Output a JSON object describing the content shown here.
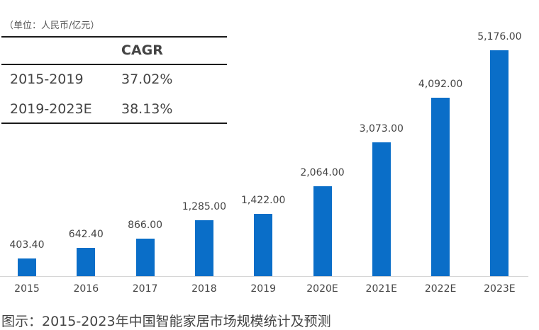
{
  "chart_data": {
    "type": "bar",
    "title": "图示：2015-2023年中国智能家居市场规模统计及预测",
    "unit_label": "（单位：人民币/亿元）",
    "xlabel": "",
    "ylabel": "",
    "categories": [
      "2015",
      "2016",
      "2017",
      "2018",
      "2019",
      "2020E",
      "2021E",
      "2022E",
      "2023E"
    ],
    "values": [
      403.4,
      642.4,
      866.0,
      1285.0,
      1422.0,
      2064.0,
      3073.0,
      4092.0,
      5176.0
    ],
    "value_labels": [
      "403.40",
      "642.40",
      "866.00",
      "1,285.00",
      "1,422.00",
      "2,064.00",
      "3,073.00",
      "4,092.00",
      "5,176.00"
    ],
    "ylim": [
      0,
      5176
    ],
    "grid": false,
    "legend": null,
    "bar_color": "#0a6ec8",
    "inset_table": {
      "header": [
        "",
        "CAGR"
      ],
      "rows": [
        [
          "2015-2019",
          "37.02%"
        ],
        [
          "2019-2023E",
          "38.13%"
        ]
      ]
    }
  },
  "unit_label": "（单位：人民币/亿元）",
  "table": {
    "header_cagr": "CAGR",
    "row1_period": "2015-2019",
    "row1_value": "37.02%",
    "row2_period": "2019-2023E",
    "row2_value": "38.13%"
  },
  "caption": "图示：2015-2023年中国智能家居市场规模统计及预测"
}
